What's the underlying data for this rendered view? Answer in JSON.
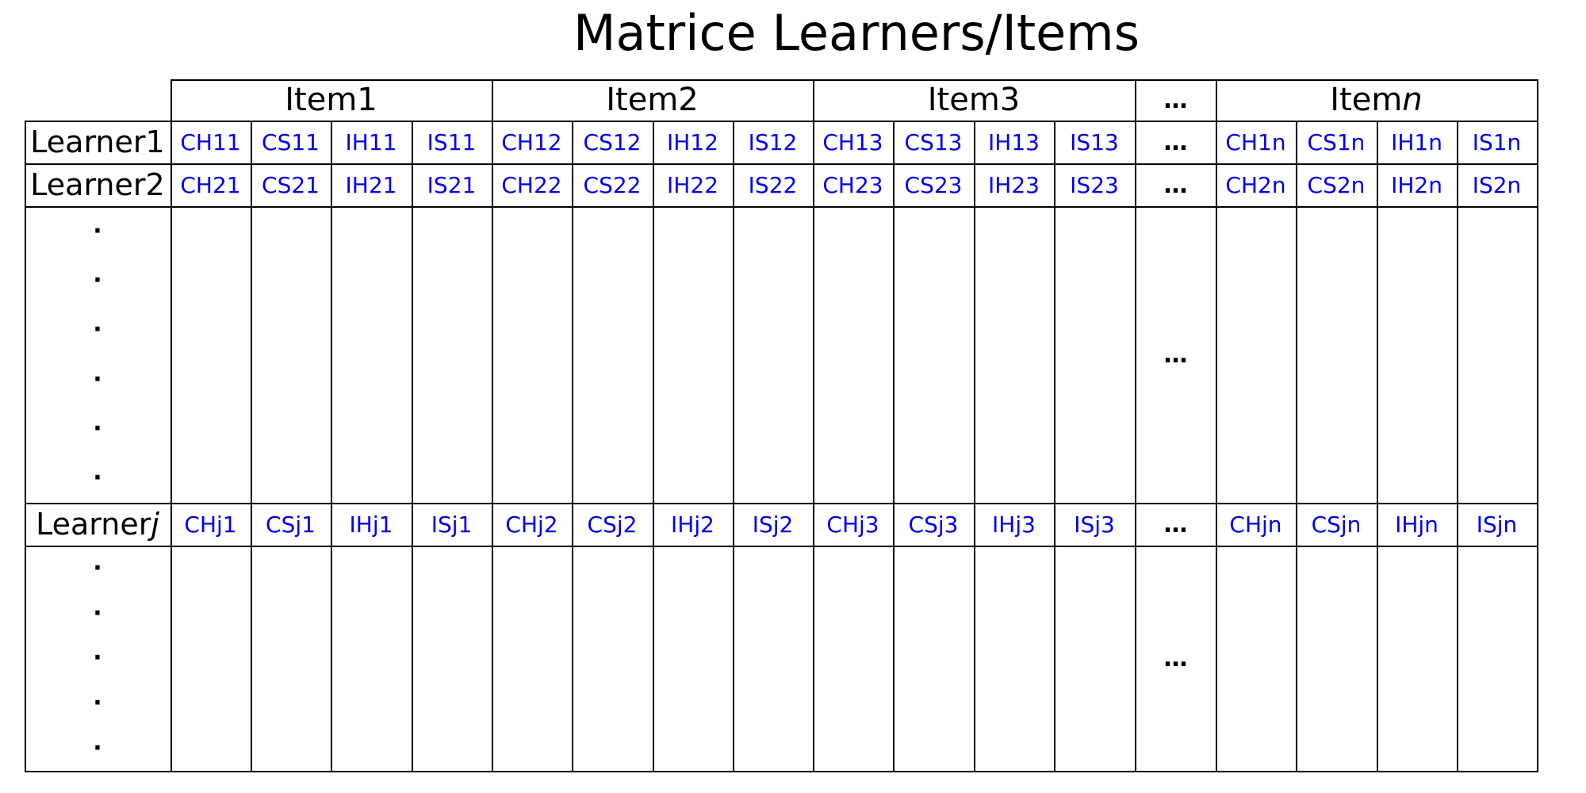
{
  "title": "Matrice Learners/Items",
  "column_groups": [
    {
      "label": "Item1",
      "suffix": ""
    },
    {
      "label": "Item2",
      "suffix": ""
    },
    {
      "label": "Item3",
      "suffix": ""
    },
    {
      "label": "…",
      "suffix": ""
    },
    {
      "label": "Item",
      "suffix": "n"
    }
  ],
  "rows": [
    {
      "label": "Learner1",
      "suffix": "",
      "cells": [
        "CH11",
        "CS11",
        "IH11",
        "IS11",
        "CH12",
        "CS12",
        "IH12",
        "IS12",
        "CH13",
        "CS13",
        "IH13",
        "IS13",
        "…",
        "CH1n",
        "CS1n",
        "IH1n",
        "IS1n"
      ]
    },
    {
      "label": "Learner2",
      "suffix": "",
      "cells": [
        "CH21",
        "CS21",
        "IH21",
        "IS21",
        "CH22",
        "CS22",
        "IH22",
        "IS22",
        "CH23",
        "CS23",
        "IH23",
        "IS23",
        "…",
        "CH2n",
        "CS2n",
        "IH2n",
        "IS2n"
      ]
    },
    {
      "label": "Learner",
      "suffix": "j",
      "cells": [
        "CHj1",
        "CSj1",
        "IHj1",
        "ISj1",
        "CHj2",
        "CSj2",
        "IHj2",
        "ISj2",
        "CHj3",
        "CSj3",
        "IHj3",
        "ISj3",
        "…",
        "CHjn",
        "CSjn",
        "IHjn",
        "ISjn"
      ]
    }
  ],
  "gap_marks": {
    "vertical_dot": "·",
    "ellipsis": "…"
  },
  "colors": {
    "code_text": "#0000ee",
    "grid": "#000000"
  }
}
